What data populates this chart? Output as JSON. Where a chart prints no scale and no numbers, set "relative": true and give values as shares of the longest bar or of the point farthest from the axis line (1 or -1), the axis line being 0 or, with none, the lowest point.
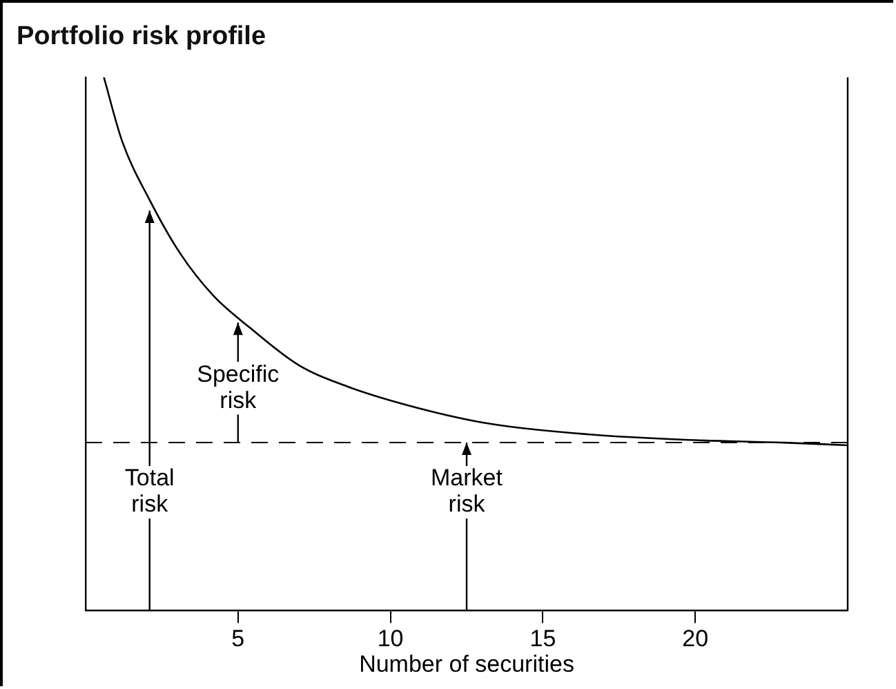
{
  "chart_data": {
    "type": "line",
    "title": "Portfolio risk profile",
    "xlabel": "Number of securities",
    "relative": true,
    "xlim": [
      0,
      25
    ],
    "xticks": [
      5,
      10,
      15,
      20
    ],
    "grid": false,
    "legend": false,
    "marker": "none",
    "line_style": "solid",
    "series": [
      {
        "color": "#000000",
        "x": [
          0.6,
          1.2,
          2.1,
          3.1,
          4.2,
          5.4,
          7.0,
          8.6,
          10.9,
          13.3,
          16.6,
          19.8,
          22.9,
          25.0
        ],
        "values": [
          1.0,
          0.88,
          0.77,
          0.67,
          0.59,
          0.53,
          0.46,
          0.42,
          0.38,
          0.35,
          0.33,
          0.32,
          0.315,
          0.31
        ]
      }
    ],
    "ref_lines": [
      {
        "axis": "y",
        "value": 0.315,
        "color": "#000000",
        "line_style": "dashed"
      }
    ],
    "annotations": [
      {
        "text": "Total risk",
        "x": 2.1,
        "y": 0.75
      },
      {
        "text": "Specific risk",
        "x": 5,
        "y": 0.54
      },
      {
        "text": "Market risk",
        "x": 12.5,
        "y": 0.315
      }
    ]
  }
}
